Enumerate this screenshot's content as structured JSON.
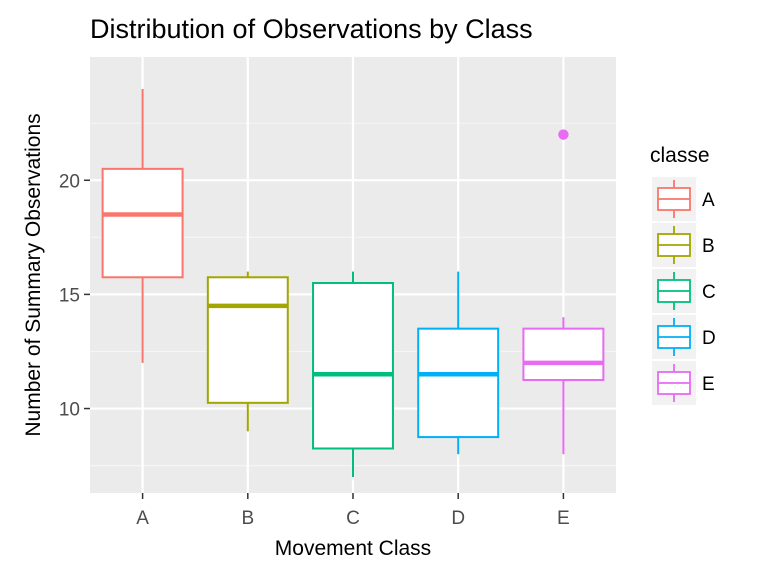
{
  "chart_data": {
    "type": "box",
    "title": "Distribution of Observations by Class",
    "xlabel": "Movement Class",
    "ylabel": "Number of Summary Observations",
    "categories": [
      "A",
      "B",
      "C",
      "D",
      "E"
    ],
    "ylim": [
      6.3,
      25.4
    ],
    "yticks": [
      10,
      15,
      20
    ],
    "grid": true,
    "legend": {
      "title": "classe",
      "position": "right"
    },
    "colors": [
      "#F8766D",
      "#A3A500",
      "#00BF7D",
      "#00B0F6",
      "#E76BF3"
    ],
    "boxes": [
      {
        "name": "A",
        "min": 12,
        "q1": 15.75,
        "median": 18.5,
        "q3": 20.5,
        "max": 24,
        "outliers": []
      },
      {
        "name": "B",
        "min": 9,
        "q1": 10.25,
        "median": 14.5,
        "q3": 15.75,
        "max": 16,
        "outliers": []
      },
      {
        "name": "C",
        "min": 7,
        "q1": 8.25,
        "median": 11.5,
        "q3": 15.5,
        "max": 16,
        "outliers": []
      },
      {
        "name": "D",
        "min": 8,
        "q1": 8.75,
        "median": 11.5,
        "q3": 13.5,
        "max": 16,
        "outliers": []
      },
      {
        "name": "E",
        "min": 8,
        "q1": 11.25,
        "median": 12,
        "q3": 13.5,
        "max": 14,
        "outliers": [
          22
        ]
      }
    ]
  }
}
